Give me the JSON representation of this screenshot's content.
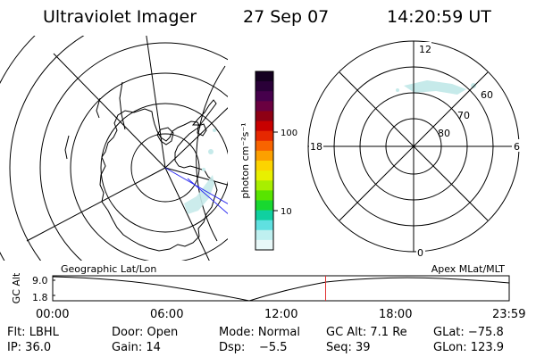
{
  "header": {
    "title": "Ultraviolet Imager",
    "date": "27 Sep 07",
    "time": "14:20:59 UT"
  },
  "colorbar": {
    "unit_label": "photon cm⁻²s⁻¹",
    "tick_100": "100",
    "tick_10": "10",
    "colors_top_to_bottom": [
      "#140020",
      "#2a0038",
      "#46004c",
      "#6a0040",
      "#8e0014",
      "#c80000",
      "#e62800",
      "#f86400",
      "#fca000",
      "#fcd400",
      "#e8f000",
      "#a8ee00",
      "#58e400",
      "#18d830",
      "#10d0a0",
      "#60e0e0",
      "#bff0f0",
      "#e8f8f8"
    ]
  },
  "left_map": {
    "label": "Geographic Lat/Lon"
  },
  "right_map": {
    "label": "Apex MLat/MLT",
    "mlt_labels": {
      "top": "12",
      "bottom": "0",
      "left": "18",
      "right": "6"
    },
    "mlat_labels": [
      "60",
      "70",
      "80"
    ]
  },
  "timeline": {
    "ylabel": "GC Alt",
    "ytick_top": "9.0",
    "ytick_bottom": "1.8",
    "xticks": [
      "00:00",
      "06:00",
      "12:00",
      "18:00",
      "23:59"
    ],
    "current_time_marker_hours": 14.35,
    "marker_color": "#e03030"
  },
  "info": {
    "row1": {
      "filter": "Flt: LBHL",
      "door": "Door: Open",
      "mode": "Mode: Normal",
      "gc_alt": "GC Alt: 7.1 Re",
      "glat": "GLat: −75.8"
    },
    "row2": {
      "ip": "IP: 36.0",
      "gain": "Gain: 14",
      "dsp_label": "Dsp:",
      "dsp_value": "−5.5",
      "seq": "Seq: 39",
      "glon": "GLon: 123.9"
    }
  }
}
